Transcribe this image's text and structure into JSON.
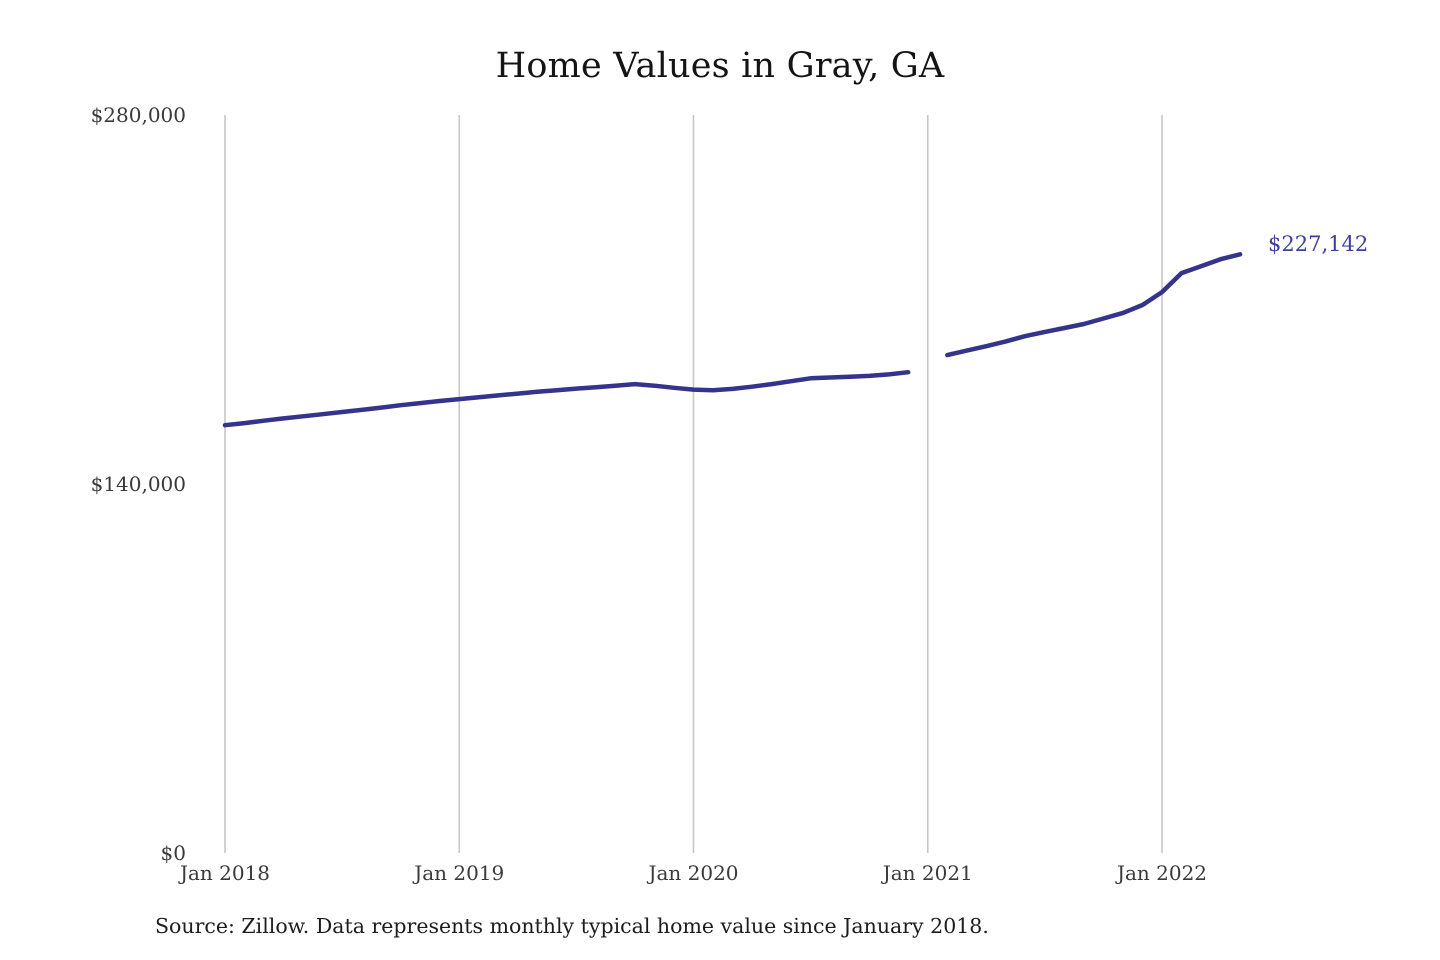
{
  "chart": {
    "title": "Home Values in Gray, GA",
    "end_label": "$227,142",
    "source": "Source: Zillow. Data represents monthly typical home value since January 2018.",
    "colors": {
      "line": "#34348c",
      "end_label": "#3f3f9c",
      "grid": "#c7c7c7",
      "axis_text": "#3a3a3a",
      "title_text": "#141414",
      "source_text": "#1d1d1d",
      "background": "#ffffff"
    }
  },
  "chart_data": {
    "type": "line",
    "title": "Home Values in Gray, GA",
    "xlabel": "",
    "ylabel": "",
    "ylim": [
      0,
      280000
    ],
    "grid": "vertical-only",
    "legend": "none",
    "y_ticks": [
      {
        "value": 0,
        "label": "$0"
      },
      {
        "value": 140000,
        "label": "$140,000"
      },
      {
        "value": 280000,
        "label": "$280,000"
      }
    ],
    "x_ticks": [
      {
        "month_index": 0,
        "label": "Jan 2018"
      },
      {
        "month_index": 12,
        "label": "Jan 2019"
      },
      {
        "month_index": 24,
        "label": "Jan 2020"
      },
      {
        "month_index": 36,
        "label": "Jan 2021"
      },
      {
        "month_index": 48,
        "label": "Jan 2022"
      }
    ],
    "series": [
      {
        "name": "Typical home value",
        "x": [
          "Jan 2018",
          "Feb 2018",
          "Mar 2018",
          "Apr 2018",
          "May 2018",
          "Jun 2018",
          "Jul 2018",
          "Aug 2018",
          "Sep 2018",
          "Oct 2018",
          "Nov 2018",
          "Dec 2018",
          "Jan 2019",
          "Feb 2019",
          "Mar 2019",
          "Apr 2019",
          "May 2019",
          "Jun 2019",
          "Jul 2019",
          "Aug 2019",
          "Sep 2019",
          "Oct 2019",
          "Nov 2019",
          "Dec 2019",
          "Jan 2020",
          "Feb 2020",
          "Mar 2020",
          "Apr 2020",
          "May 2020",
          "Jun 2020",
          "Jul 2020",
          "Aug 2020",
          "Sep 2020",
          "Oct 2020",
          "Nov 2020",
          "Dec 2020",
          "Jan 2021",
          "Feb 2021",
          "Mar 2021",
          "Apr 2021",
          "May 2021",
          "Jun 2021",
          "Jul 2021",
          "Aug 2021",
          "Sep 2021",
          "Oct 2021",
          "Nov 2021",
          "Dec 2021",
          "Jan 2022",
          "Feb 2022",
          "Mar 2022",
          "Apr 2022",
          "May 2022"
        ],
        "values": [
          162300,
          163100,
          164000,
          164900,
          165700,
          166500,
          167300,
          168100,
          169000,
          169900,
          170700,
          171500,
          172200,
          172900,
          173600,
          174300,
          175000,
          175600,
          176200,
          176700,
          177300,
          177900,
          177300,
          176500,
          175800,
          175600,
          176100,
          176900,
          177900,
          179000,
          180100,
          180400,
          180700,
          181000,
          181600,
          182400,
          null,
          188900,
          190600,
          192300,
          194100,
          196100,
          197700,
          199200,
          200700,
          202800,
          204900,
          207900,
          212800,
          220000,
          222600,
          225300,
          227142
        ]
      }
    ],
    "final_value": 227142,
    "final_value_label": "$227,142",
    "notes": "Line has a visible break (no data point) at Jan 2021. Values other than the labeled final value are estimated from the plot."
  }
}
